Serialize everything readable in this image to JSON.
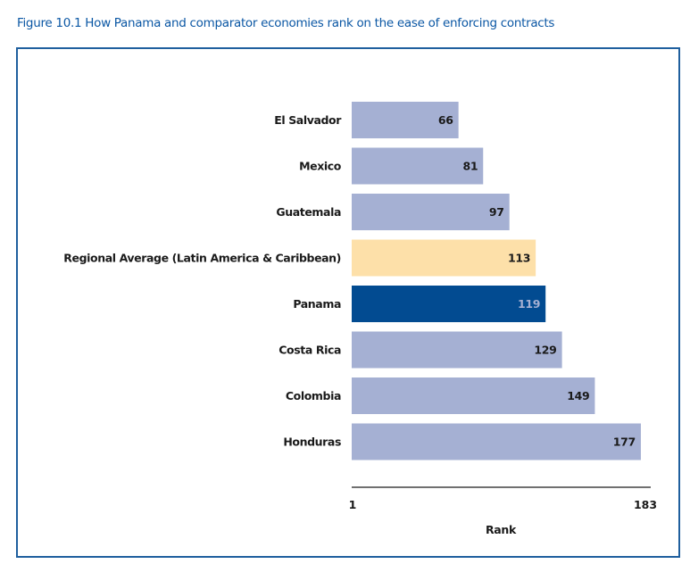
{
  "chart_data": {
    "type": "bar",
    "orientation": "horizontal",
    "title": "Figure 10.1 How Panama and comparator economies rank on the ease of enforcing contracts",
    "categories": [
      "El Salvador",
      "Mexico",
      "Guatemala",
      "Regional Average (Latin America & Caribbean)",
      "Panama",
      "Costa Rica",
      "Colombia",
      "Honduras"
    ],
    "values": [
      66,
      81,
      97,
      113,
      119,
      129,
      149,
      177
    ],
    "value_labels": [
      "66",
      "81",
      "97",
      "113",
      "119",
      "129",
      "149",
      "177"
    ],
    "bar_colors": [
      "#a5b0d3",
      "#a5b0d3",
      "#a5b0d3",
      "#fde0a9",
      "#024b91",
      "#a5b0d3",
      "#a5b0d3",
      "#a5b0d3"
    ],
    "label_colors": [
      "#1a1a1a",
      "#1a1a1a",
      "#1a1a1a",
      "#1a1a1a",
      "#a5b0d3",
      "#1a1a1a",
      "#1a1a1a",
      "#1a1a1a"
    ],
    "xlabel": "Rank",
    "ylabel": "",
    "xlim": [
      1,
      183
    ],
    "x_ticks": [
      "1",
      "183"
    ],
    "grid": false,
    "legend": "none"
  },
  "colors": {
    "title": "#0b57a4",
    "frame": "#1f5f9e",
    "comparator": "#a5b0d3",
    "regional_average": "#fde0a9",
    "highlight": "#024b91"
  }
}
